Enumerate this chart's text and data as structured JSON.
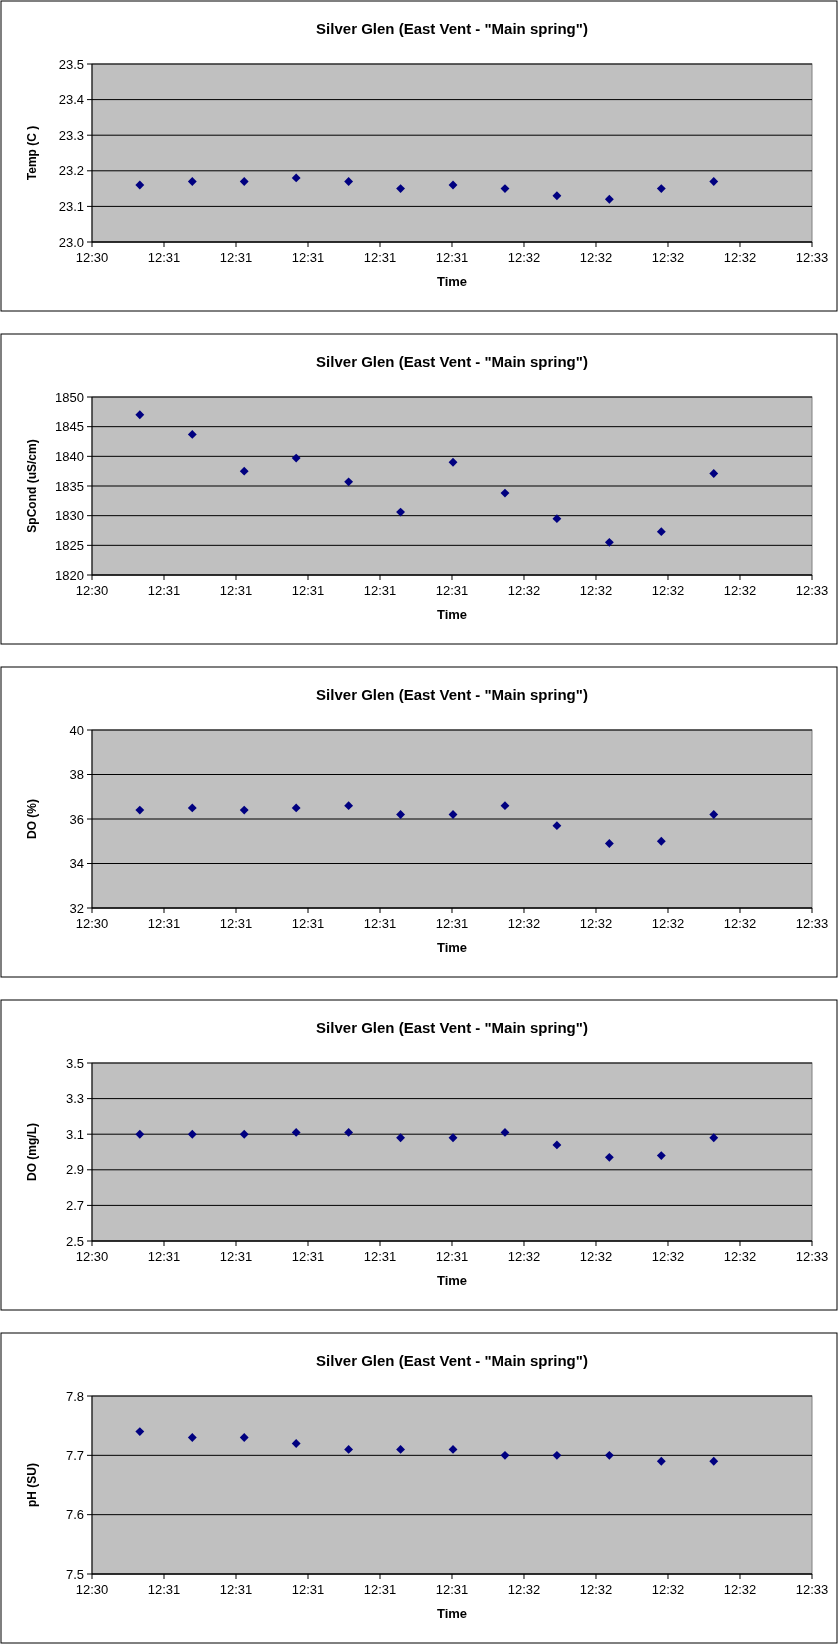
{
  "chart_data": [
    {
      "type": "scatter",
      "title": "Silver Glen (East Vent - \"Main spring\")",
      "xlabel": "Time",
      "ylabel": "Temp (C )",
      "marker": "diamond",
      "grid": "y",
      "x": [
        12.507583,
        12.510417,
        12.513222,
        12.516028,
        12.518861,
        12.521667,
        12.5245,
        12.527306,
        12.530111,
        12.532944,
        12.53575,
        12.538583
      ],
      "series": [
        {
          "color": "#000080",
          "values": [
            23.16,
            23.17,
            23.17,
            23.18,
            23.17,
            23.15,
            23.16,
            23.15,
            23.13,
            23.12,
            23.15,
            23.17
          ]
        }
      ],
      "xlim": [
        12.505,
        12.543889
      ],
      "xticks": [
        {
          "value": 12.505,
          "label": "12:30"
        },
        {
          "value": 12.508889,
          "label": "12:31"
        },
        {
          "value": 12.512778,
          "label": "12:31"
        },
        {
          "value": 12.516667,
          "label": "12:31"
        },
        {
          "value": 12.520556,
          "label": "12:31"
        },
        {
          "value": 12.524444,
          "label": "12:31"
        },
        {
          "value": 12.528333,
          "label": "12:32"
        },
        {
          "value": 12.532222,
          "label": "12:32"
        },
        {
          "value": 12.536111,
          "label": "12:32"
        },
        {
          "value": 12.54,
          "label": "12:32"
        },
        {
          "value": 12.543889,
          "label": "12:33"
        }
      ],
      "ylim": [
        23.0,
        23.5
      ],
      "yticks": [
        {
          "value": 23,
          "label": "23.0"
        },
        23.1,
        23.2,
        23.3,
        23.4,
        23.5
      ]
    },
    {
      "type": "scatter",
      "title": "Silver Glen (East Vent - \"Main spring\")",
      "xlabel": "Time",
      "ylabel": "SpCond (uS/cm)",
      "marker": "diamond",
      "grid": "y",
      "x": [
        12.507583,
        12.510417,
        12.513222,
        12.516028,
        12.518861,
        12.521667,
        12.5245,
        12.527306,
        12.530111,
        12.532944,
        12.53575,
        12.538583
      ],
      "series": [
        {
          "color": "#000080",
          "values": [
            1847,
            1843.7,
            1837.5,
            1839.7,
            1835.7,
            1830.6,
            1839,
            1833.8,
            1829.5,
            1825.5,
            1827.3,
            1837.1
          ]
        }
      ],
      "xlim": [
        12.505,
        12.543889
      ],
      "xticks": [
        {
          "value": 12.505,
          "label": "12:30"
        },
        {
          "value": 12.508889,
          "label": "12:31"
        },
        {
          "value": 12.512778,
          "label": "12:31"
        },
        {
          "value": 12.516667,
          "label": "12:31"
        },
        {
          "value": 12.520556,
          "label": "12:31"
        },
        {
          "value": 12.524444,
          "label": "12:31"
        },
        {
          "value": 12.528333,
          "label": "12:32"
        },
        {
          "value": 12.532222,
          "label": "12:32"
        },
        {
          "value": 12.536111,
          "label": "12:32"
        },
        {
          "value": 12.54,
          "label": "12:32"
        },
        {
          "value": 12.543889,
          "label": "12:33"
        }
      ],
      "ylim": [
        1820,
        1850
      ],
      "yticks": [
        1820,
        1825,
        1830,
        1835,
        1840,
        1845,
        1850
      ]
    },
    {
      "type": "scatter",
      "title": "Silver Glen (East Vent - \"Main spring\")",
      "xlabel": "Time",
      "ylabel": "DO (%)",
      "marker": "diamond",
      "grid": "y",
      "x": [
        12.507583,
        12.510417,
        12.513222,
        12.516028,
        12.518861,
        12.521667,
        12.5245,
        12.527306,
        12.530111,
        12.532944,
        12.53575,
        12.538583
      ],
      "series": [
        {
          "color": "#000080",
          "values": [
            36.4,
            36.5,
            36.4,
            36.5,
            36.6,
            36.2,
            36.2,
            36.6,
            35.7,
            34.9,
            35.0,
            36.2
          ]
        }
      ],
      "xlim": [
        12.505,
        12.543889
      ],
      "xticks": [
        {
          "value": 12.505,
          "label": "12:30"
        },
        {
          "value": 12.508889,
          "label": "12:31"
        },
        {
          "value": 12.512778,
          "label": "12:31"
        },
        {
          "value": 12.516667,
          "label": "12:31"
        },
        {
          "value": 12.520556,
          "label": "12:31"
        },
        {
          "value": 12.524444,
          "label": "12:31"
        },
        {
          "value": 12.528333,
          "label": "12:32"
        },
        {
          "value": 12.532222,
          "label": "12:32"
        },
        {
          "value": 12.536111,
          "label": "12:32"
        },
        {
          "value": 12.54,
          "label": "12:32"
        },
        {
          "value": 12.543889,
          "label": "12:33"
        }
      ],
      "ylim": [
        32,
        40
      ],
      "yticks": [
        32,
        34,
        36,
        38,
        40
      ]
    },
    {
      "type": "scatter",
      "title": "Silver Glen (East Vent - \"Main spring\")",
      "xlabel": "Time",
      "ylabel": "DO (mg/L)",
      "marker": "diamond",
      "grid": "y",
      "x": [
        12.507583,
        12.510417,
        12.513222,
        12.516028,
        12.518861,
        12.521667,
        12.5245,
        12.527306,
        12.530111,
        12.532944,
        12.53575,
        12.538583
      ],
      "series": [
        {
          "color": "#000080",
          "values": [
            3.1,
            3.1,
            3.1,
            3.11,
            3.11,
            3.08,
            3.08,
            3.11,
            3.04,
            2.97,
            2.98,
            3.08
          ]
        }
      ],
      "xlim": [
        12.505,
        12.543889
      ],
      "xticks": [
        {
          "value": 12.505,
          "label": "12:30"
        },
        {
          "value": 12.508889,
          "label": "12:31"
        },
        {
          "value": 12.512778,
          "label": "12:31"
        },
        {
          "value": 12.516667,
          "label": "12:31"
        },
        {
          "value": 12.520556,
          "label": "12:31"
        },
        {
          "value": 12.524444,
          "label": "12:31"
        },
        {
          "value": 12.528333,
          "label": "12:32"
        },
        {
          "value": 12.532222,
          "label": "12:32"
        },
        {
          "value": 12.536111,
          "label": "12:32"
        },
        {
          "value": 12.54,
          "label": "12:32"
        },
        {
          "value": 12.543889,
          "label": "12:33"
        }
      ],
      "ylim": [
        2.5,
        3.5
      ],
      "yticks": [
        2.5,
        2.7,
        2.9,
        3.1,
        3.3,
        3.5
      ]
    },
    {
      "type": "scatter",
      "title": "Silver Glen (East Vent - \"Main spring\")",
      "xlabel": "Time",
      "ylabel": "pH (SU)",
      "marker": "diamond",
      "grid": "y",
      "x": [
        12.507583,
        12.510417,
        12.513222,
        12.516028,
        12.518861,
        12.521667,
        12.5245,
        12.527306,
        12.530111,
        12.532944,
        12.53575,
        12.538583
      ],
      "series": [
        {
          "color": "#000080",
          "values": [
            7.74,
            7.73,
            7.73,
            7.72,
            7.71,
            7.71,
            7.71,
            7.7,
            7.7,
            7.7,
            7.69,
            7.69
          ]
        }
      ],
      "xlim": [
        12.505,
        12.543889
      ],
      "xticks": [
        {
          "value": 12.505,
          "label": "12:30"
        },
        {
          "value": 12.508889,
          "label": "12:31"
        },
        {
          "value": 12.512778,
          "label": "12:31"
        },
        {
          "value": 12.516667,
          "label": "12:31"
        },
        {
          "value": 12.520556,
          "label": "12:31"
        },
        {
          "value": 12.524444,
          "label": "12:31"
        },
        {
          "value": 12.528333,
          "label": "12:32"
        },
        {
          "value": 12.532222,
          "label": "12:32"
        },
        {
          "value": 12.536111,
          "label": "12:32"
        },
        {
          "value": 12.54,
          "label": "12:32"
        },
        {
          "value": 12.543889,
          "label": "12:33"
        }
      ],
      "ylim": [
        7.5,
        7.8
      ],
      "yticks": [
        7.5,
        7.6,
        7.7,
        7.8
      ]
    }
  ]
}
